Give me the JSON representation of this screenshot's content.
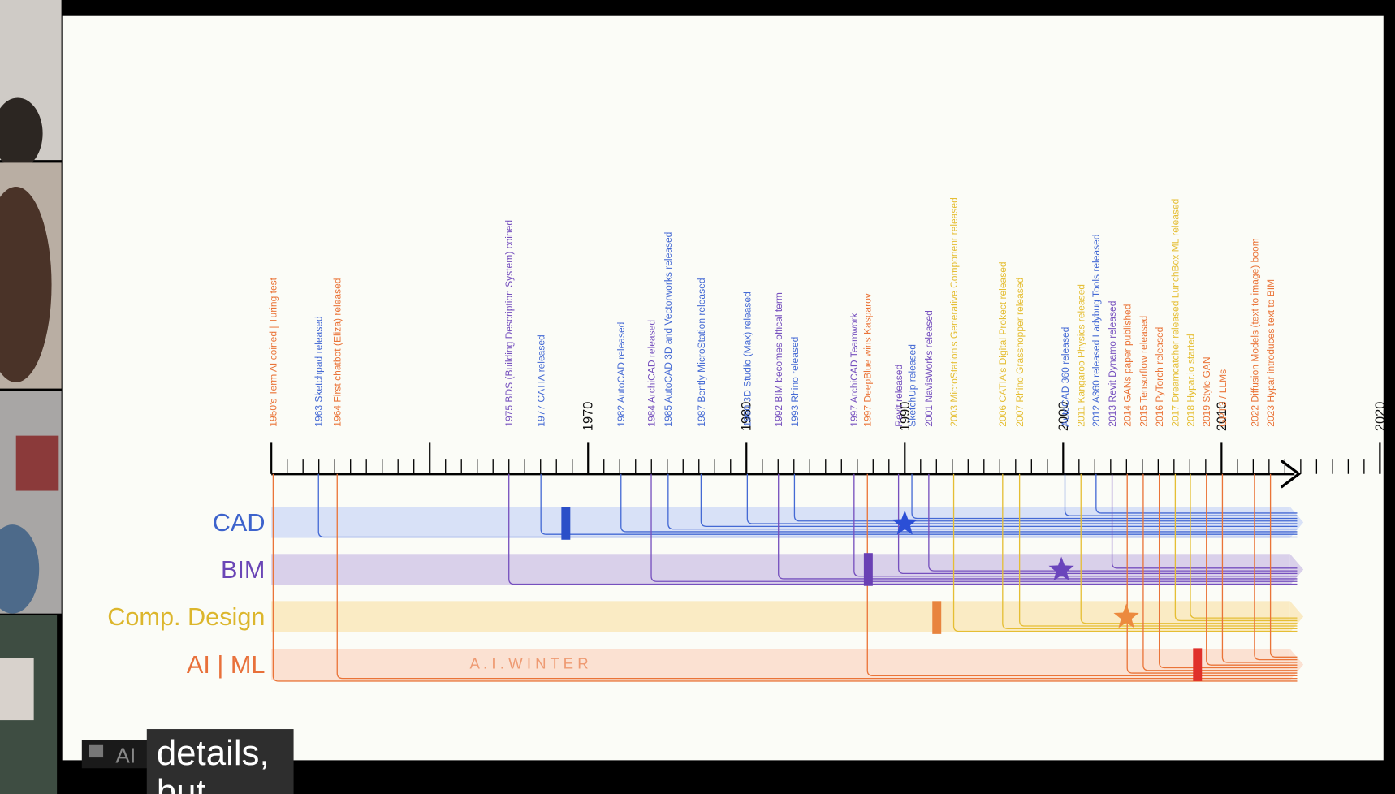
{
  "participant": "AI",
  "caption": {
    "lines": [
      "details,",
      "but"
    ]
  },
  "slide": {
    "axis_labels": [
      "1970",
      "1980",
      "1990",
      "2000",
      "2010",
      "2020"
    ],
    "lanes": [
      "CAD",
      "BIM",
      "Comp. Design",
      "AI | ML"
    ],
    "winter_label": "A . I .   W I N T E R",
    "events": [
      "1950's Term AI coined | Turing test",
      "1963 Sketchpad released",
      "1964 First chatbot (Eliza) released",
      "1975 BDS (Building Description System) coined",
      "1977 CATIA released",
      "1982 AutoCAD released",
      "1984 ArchiCAD released",
      "1985 AutoCAD 3D and Vectorworks released",
      "1987 Bently MicroStation released",
      "1990 3D Studio (Max) released",
      "1992 BIM becomes offical term",
      "1993 Rhino released",
      "1997 ArchiCAD Teamwork",
      "1997 DeepBlue wins Kasparov",
      "Revit released",
      "SketchUp released",
      "2001 NavisWorks released",
      "2003 MicroStation's Generative Component released",
      "2006 CATIA's Digital Prokect released",
      "2007 Rhino Grasshopper released",
      "AutoCAD 360 released",
      "2011 Kangaroo Physics released",
      "2012 A360 released  Ladybug Tools released",
      "2013 Revit Dynamo released",
      "2014 GANs paper published",
      "2015 Tensorflow released",
      "2016 PyTorch released",
      "2017 Dreamcatcher released  LunchBox ML released",
      "2018 Hypar.io started",
      "2019 Style GAN",
      "GPT3 / LLMs",
      "2022 Diffusion Models (text to image) boom",
      "2023 Hypar introduces text to BIM"
    ]
  }
}
